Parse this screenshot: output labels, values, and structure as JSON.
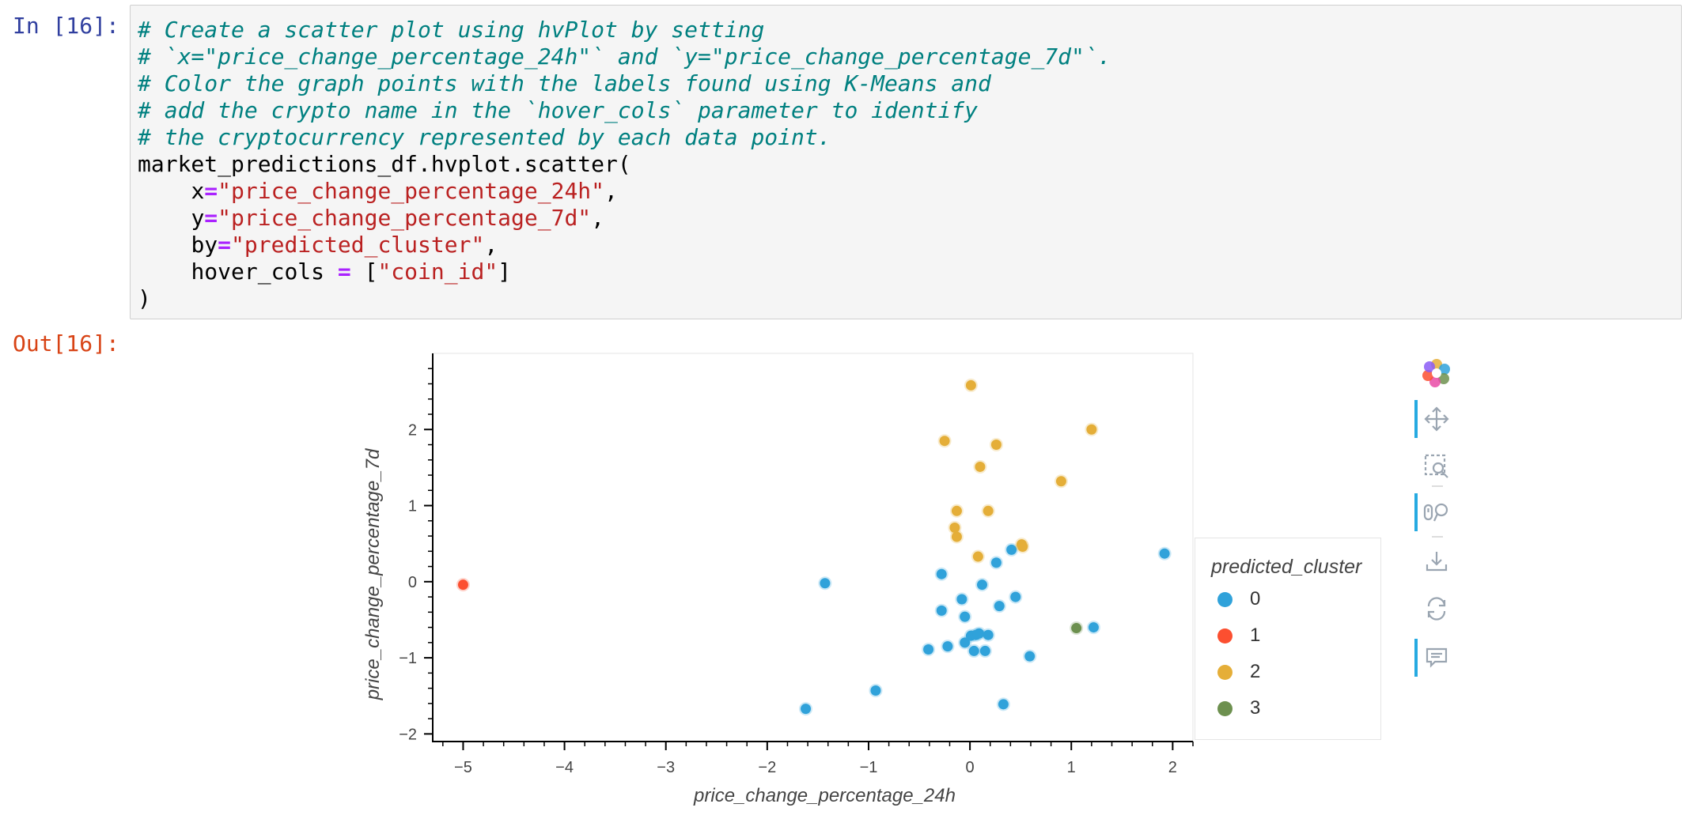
{
  "cell": {
    "in_prompt": "In [16]:",
    "out_prompt": "Out[16]:",
    "code": {
      "comment_1": "# Create a scatter plot using hvPlot by setting",
      "comment_2": "# `x=\"price_change_percentage_24h\"` and `y=\"price_change_percentage_7d\"`.",
      "comment_3": "# Color the graph points with the labels found using K-Means and",
      "comment_4": "# add the crypto name in the `hover_cols` parameter to identify",
      "comment_5": "# the cryptocurrency represented by each data point.",
      "call": "market_predictions_df.hvplot.scatter(",
      "x_kw": "x",
      "x_val": "\"price_change_percentage_24h\"",
      "y_kw": "y",
      "y_val": "\"price_change_percentage_7d\"",
      "by_kw": "by",
      "by_val": "\"predicted_cluster\"",
      "hover_kw": "hover_cols ",
      "hover_open": " [",
      "hover_val": "\"coin_id\"",
      "hover_close": "]",
      "equals": "=",
      "comma": ",",
      "close_paren": ")"
    }
  },
  "chart_data": {
    "type": "scatter",
    "xlabel": "price_change_percentage_24h",
    "ylabel": "price_change_percentage_7d",
    "xlim": [
      -5.3,
      2.2
    ],
    "ylim": [
      -2.1,
      3.0
    ],
    "xticks": [
      -5,
      -4,
      -3,
      -2,
      -1,
      0,
      1,
      2
    ],
    "yticks": [
      -2,
      -1,
      0,
      1,
      2
    ],
    "xtick_labels": [
      "−5",
      "−4",
      "−3",
      "−2",
      "−1",
      "0",
      "1",
      "2"
    ],
    "ytick_labels": [
      "−2",
      "−1",
      "0",
      "1",
      "2"
    ],
    "legend": {
      "title": "predicted_cluster",
      "placement": "right",
      "labels": [
        "0",
        "1",
        "2",
        "3"
      ]
    },
    "series": [
      {
        "name": "0",
        "color": "#30a2da",
        "points": [
          [
            -1.43,
            -0.02
          ],
          [
            -1.62,
            -1.67
          ],
          [
            -0.93,
            -1.43
          ],
          [
            -0.41,
            -0.89
          ],
          [
            -0.22,
            -0.85
          ],
          [
            -0.28,
            0.1
          ],
          [
            -0.28,
            -0.38
          ],
          [
            -0.08,
            -0.23
          ],
          [
            -0.05,
            -0.46
          ],
          [
            -0.05,
            -0.8
          ],
          [
            0.01,
            -0.71
          ],
          [
            0.04,
            -0.91
          ],
          [
            0.06,
            -0.7
          ],
          [
            0.09,
            -0.68
          ],
          [
            0.12,
            -0.04
          ],
          [
            0.15,
            -0.91
          ],
          [
            0.18,
            -0.7
          ],
          [
            0.26,
            0.25
          ],
          [
            0.29,
            -0.32
          ],
          [
            0.33,
            -1.61
          ],
          [
            0.41,
            0.42
          ],
          [
            0.45,
            -0.2
          ],
          [
            0.59,
            -0.98
          ],
          [
            1.22,
            -0.6
          ],
          [
            1.92,
            0.37
          ]
        ]
      },
      {
        "name": "1",
        "color": "#fc4f30",
        "points": [
          [
            -5.0,
            -0.04
          ]
        ]
      },
      {
        "name": "2",
        "color": "#e5ae38",
        "points": [
          [
            0.01,
            2.58
          ],
          [
            -0.25,
            1.85
          ],
          [
            0.26,
            1.8
          ],
          [
            1.2,
            2.0
          ],
          [
            0.1,
            1.51
          ],
          [
            0.9,
            1.32
          ],
          [
            -0.13,
            0.93
          ],
          [
            0.18,
            0.93
          ],
          [
            -0.15,
            0.71
          ],
          [
            -0.13,
            0.59
          ],
          [
            0.08,
            0.33
          ],
          [
            0.51,
            0.49
          ],
          [
            0.52,
            0.46
          ]
        ]
      },
      {
        "name": "3",
        "color": "#6d904f",
        "points": [
          [
            1.05,
            -0.61
          ]
        ]
      }
    ]
  },
  "toolbar": {
    "icons": [
      "bokeh-logo-icon",
      "pan-icon",
      "box-zoom-icon",
      "wheel-zoom-icon",
      "save-icon",
      "reset-icon",
      "hover-icon"
    ]
  }
}
